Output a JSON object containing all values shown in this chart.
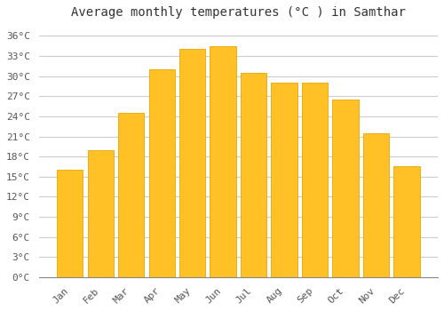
{
  "title": "Average monthly temperatures (°C ) in Samthar",
  "months": [
    "Jan",
    "Feb",
    "Mar",
    "Apr",
    "May",
    "Jun",
    "Jul",
    "Aug",
    "Sep",
    "Oct",
    "Nov",
    "Dec"
  ],
  "temperatures": [
    16,
    19,
    24.5,
    31,
    34,
    34.5,
    30.5,
    29,
    29,
    26.5,
    21.5,
    16.5
  ],
  "bar_color": "#FFC125",
  "bar_edge_color": "#E8A800",
  "background_color": "#ffffff",
  "grid_color": "#cccccc",
  "ytick_values": [
    0,
    3,
    6,
    9,
    12,
    15,
    18,
    21,
    24,
    27,
    30,
    33,
    36
  ],
  "ylim": [
    0,
    37.5
  ],
  "title_fontsize": 10,
  "tick_fontsize": 8,
  "tick_font_family": "monospace"
}
